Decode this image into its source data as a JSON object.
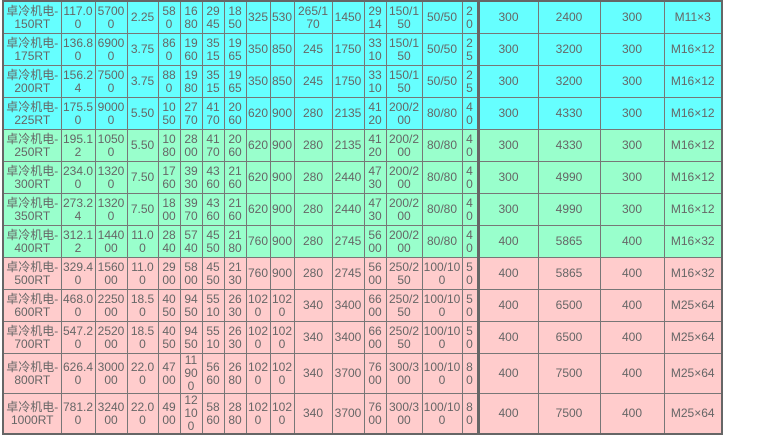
{
  "colors": {
    "group_1": "#66ffff",
    "group_2": "#99ffcc",
    "group_3": "#ffcccc",
    "text": "#666666"
  },
  "rows": [
    {
      "group": 0,
      "cells": [
        "卓冷机电-150RT",
        "117.00",
        "57000",
        "2.25",
        "580",
        "1680",
        "2945",
        "1850",
        "325",
        "530",
        "265/170",
        "1450",
        "2914",
        "150/150",
        "50/50",
        "20",
        "300",
        "2400",
        "300",
        "M11×3"
      ]
    },
    {
      "group": 0,
      "cells": [
        "卓冷机电-175RT",
        "136.80",
        "69000",
        "3.75",
        "860",
        "1960",
        "3515",
        "1965",
        "350",
        "850",
        "245",
        "1750",
        "3310",
        "150/150",
        "50/50",
        "25",
        "300",
        "3200",
        "300",
        "M16×12"
      ]
    },
    {
      "group": 0,
      "cells": [
        "卓冷机电-200RT",
        "156.24",
        "75000",
        "3.75",
        "880",
        "1980",
        "3515",
        "1965",
        "350",
        "850",
        "245",
        "1750",
        "3310",
        "150/150",
        "50/50",
        "25",
        "300",
        "3200",
        "300",
        "M16×12"
      ]
    },
    {
      "group": 0,
      "cells": [
        "卓冷机电-225RT",
        "175.50",
        "90000",
        "5.50",
        "1050",
        "2770",
        "4170",
        "2060",
        "620",
        "900",
        "280",
        "2135",
        "4120",
        "200/200",
        "80/80",
        "40",
        "300",
        "4330",
        "300",
        "M16×12"
      ]
    },
    {
      "group": 1,
      "cells": [
        "卓冷机电-250RT",
        "195.12",
        "10500",
        "5.50",
        "1080",
        "2800",
        "4170",
        "2060",
        "620",
        "900",
        "280",
        "2135",
        "4120",
        "200/200",
        "80/80",
        "40",
        "300",
        "4330",
        "300",
        "M16×12"
      ]
    },
    {
      "group": 1,
      "cells": [
        "卓冷机电-300RT",
        "234.00",
        "13200",
        "7.50",
        "1760",
        "3930",
        "4360",
        "2160",
        "620",
        "900",
        "280",
        "2440",
        "4730",
        "200/200",
        "80/80",
        "40",
        "300",
        "4990",
        "300",
        "M16×12"
      ]
    },
    {
      "group": 1,
      "cells": [
        "卓冷机电-350RT",
        "273.24",
        "13200",
        "7.50",
        "1800",
        "3970",
        "4360",
        "2160",
        "620",
        "900",
        "280",
        "2440",
        "4730",
        "200/200",
        "80/80",
        "40",
        "300",
        "4990",
        "300",
        "M16×12"
      ]
    },
    {
      "group": 1,
      "cells": [
        "卓冷机电-400RT",
        "312.12",
        "144000",
        "11.00",
        "2840",
        "5740",
        "4550",
        "2180",
        "760",
        "900",
        "280",
        "2745",
        "5600",
        "200/200",
        "80/80",
        "40",
        "400",
        "5865",
        "400",
        "M16×32"
      ]
    },
    {
      "group": 2,
      "cells": [
        "卓冷机电-500RT",
        "329.40",
        "156000",
        "11.00",
        "2900",
        "5800",
        "4550",
        "2130",
        "760",
        "900",
        "280",
        "2745",
        "5600",
        "250/250",
        "100/100",
        "50",
        "400",
        "5865",
        "400",
        "M16×32"
      ]
    },
    {
      "group": 2,
      "cells": [
        "卓冷机电-600RT",
        "468.00",
        "225000",
        "18.50",
        "4050",
        "9450",
        "5510",
        "2630",
        "1020",
        "1020",
        "340",
        "3400",
        "6600",
        "250/250",
        "100/100",
        "50",
        "400",
        "6500",
        "400",
        "M25×64"
      ]
    },
    {
      "group": 2,
      "cells": [
        "卓冷机电-700RT",
        "547.20",
        "252000",
        "18.50",
        "4050",
        "9450",
        "5510",
        "2630",
        "1020",
        "1020",
        "340",
        "3400",
        "6600",
        "250/250",
        "100/100",
        "50",
        "400",
        "6500",
        "400",
        "M25×64"
      ]
    },
    {
      "group": 2,
      "cells": [
        "卓冷机电-800RT",
        "626.40",
        "300000",
        "22.00",
        "4700",
        "11900",
        "5660",
        "2680",
        "1020",
        "1020",
        "340",
        "3700",
        "7600",
        "300/300",
        "100/100",
        "80",
        "400",
        "7500",
        "400",
        "M25×64"
      ]
    },
    {
      "group": 2,
      "cells": [
        "卓冷机电-1000RT",
        "781.20",
        "324000",
        "22.00",
        "4900",
        "12100",
        "5860",
        "2880",
        "1020",
        "1020",
        "340",
        "3700",
        "7600",
        "300/300",
        "100/100",
        "80",
        "400",
        "7500",
        "400",
        "M25×64"
      ]
    }
  ]
}
